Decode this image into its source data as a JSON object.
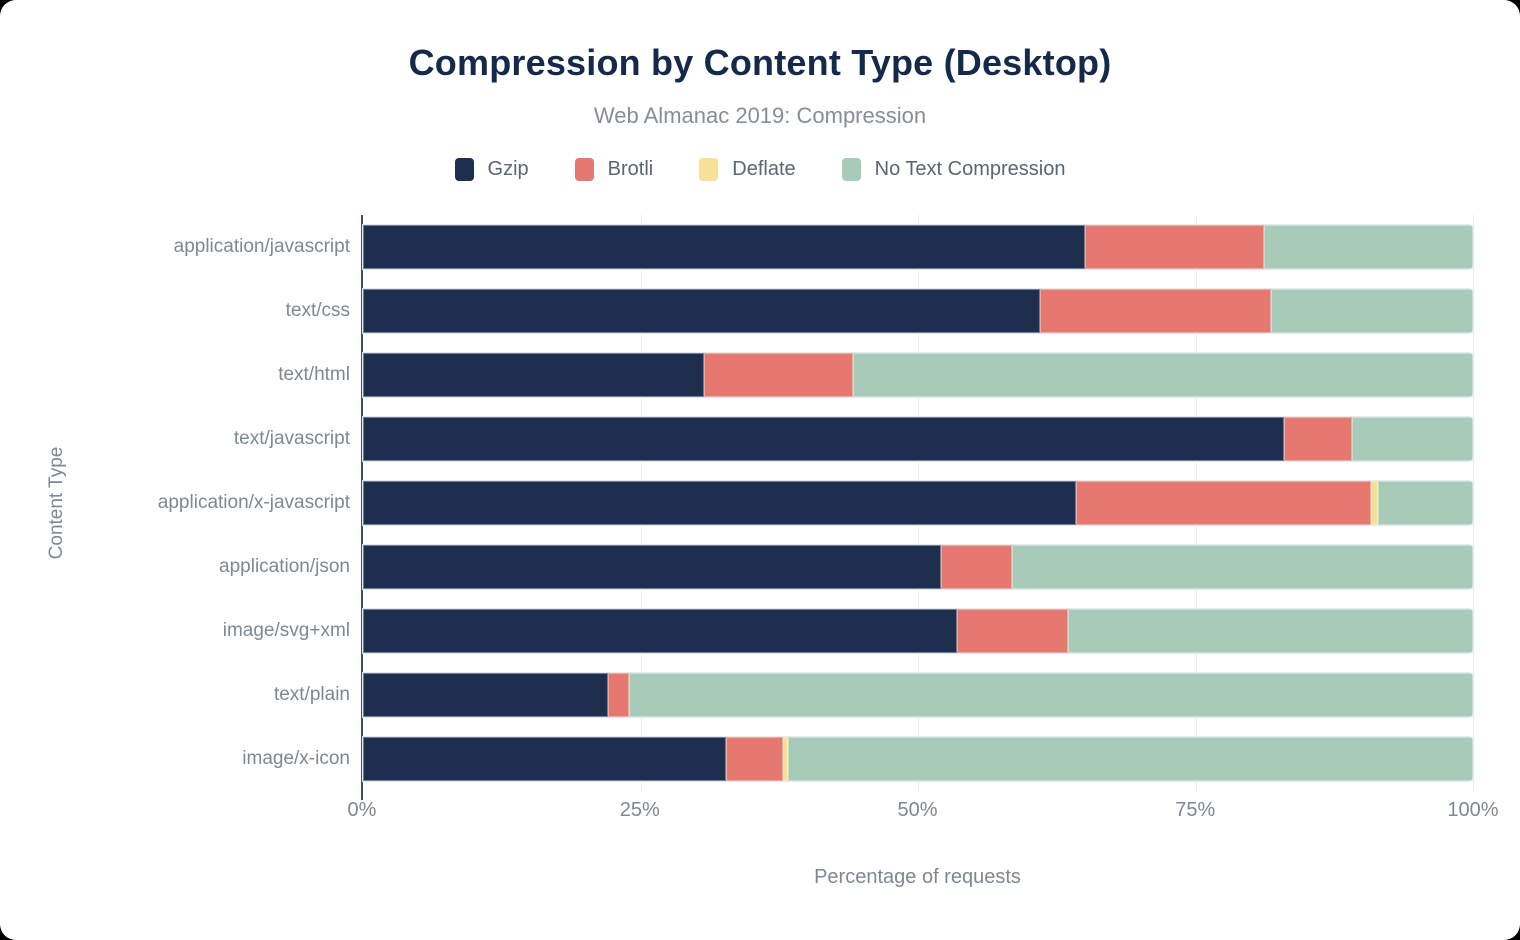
{
  "title": "Compression by Content Type (Desktop)",
  "subtitle": "Web Almanac 2019: Compression",
  "xlabel": "Percentage of requests",
  "ylabel": "Content Type",
  "colors": {
    "gzip": "#1d2e4e",
    "brotli": "#e5796f",
    "deflate": "#f8e096",
    "none": "#a8cab8",
    "title_text": "#152a4b",
    "muted_text": "#7e8893",
    "axis_line": "#3f4f6b"
  },
  "chart_data": {
    "type": "bar",
    "stacked": true,
    "orientation": "horizontal",
    "title": "Compression by Content Type (Desktop)",
    "subtitle": "Web Almanac 2019: Compression",
    "xlabel": "Percentage of requests",
    "ylabel": "Content Type",
    "xlim": [
      0,
      100
    ],
    "x_ticks": [
      {
        "label": "0%",
        "value": 0
      },
      {
        "label": "25%",
        "value": 25
      },
      {
        "label": "50%",
        "value": 50
      },
      {
        "label": "75%",
        "value": 75
      },
      {
        "label": "100%",
        "value": 100
      }
    ],
    "grid": true,
    "legend_position": "top",
    "categories": [
      "application/javascript",
      "text/css",
      "text/html",
      "text/javascript",
      "application/x-javascript",
      "application/json",
      "image/svg+xml",
      "text/plain",
      "image/x-icon"
    ],
    "series": [
      {
        "name": "Gzip",
        "color": "#1d2e4e",
        "values": [
          65.0,
          61.0,
          30.7,
          83.0,
          64.2,
          52.1,
          53.5,
          22.1,
          32.7
        ]
      },
      {
        "name": "Brotli",
        "color": "#e5796f",
        "values": [
          16.2,
          20.8,
          13.4,
          6.1,
          26.6,
          6.4,
          10.0,
          1.9,
          5.1
        ]
      },
      {
        "name": "Deflate",
        "color": "#f8e096",
        "values": [
          0.0,
          0.0,
          0.0,
          0.0,
          0.6,
          0.0,
          0.0,
          0.0,
          0.5
        ]
      },
      {
        "name": "No Text Compression",
        "color": "#a8cab8",
        "values": [
          18.8,
          18.2,
          55.9,
          10.9,
          8.6,
          41.5,
          36.5,
          76.0,
          61.7
        ]
      }
    ]
  }
}
